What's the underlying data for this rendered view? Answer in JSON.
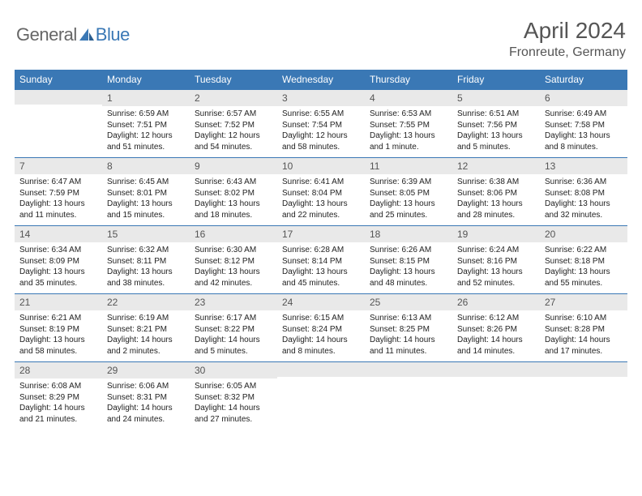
{
  "brand": {
    "part1": "General",
    "part2": "Blue"
  },
  "title": "April 2024",
  "location": "Fronreute, Germany",
  "colors": {
    "header_bg": "#3a78b5",
    "header_text": "#ffffff",
    "daynum_bg": "#e9e9e9",
    "daynum_border": "#3a78b5",
    "text": "#222222",
    "title_text": "#555555",
    "page_bg": "#ffffff"
  },
  "typography": {
    "title_fontsize": 28,
    "location_fontsize": 16,
    "weekday_fontsize": 12,
    "daynum_fontsize": 12,
    "body_fontsize": 10
  },
  "weekdays": [
    "Sunday",
    "Monday",
    "Tuesday",
    "Wednesday",
    "Thursday",
    "Friday",
    "Saturday"
  ],
  "calendar": {
    "start_weekday": 1,
    "num_days": 30
  },
  "days": {
    "1": {
      "sunrise": "Sunrise: 6:59 AM",
      "sunset": "Sunset: 7:51 PM",
      "daylight": "Daylight: 12 hours and 51 minutes."
    },
    "2": {
      "sunrise": "Sunrise: 6:57 AM",
      "sunset": "Sunset: 7:52 PM",
      "daylight": "Daylight: 12 hours and 54 minutes."
    },
    "3": {
      "sunrise": "Sunrise: 6:55 AM",
      "sunset": "Sunset: 7:54 PM",
      "daylight": "Daylight: 12 hours and 58 minutes."
    },
    "4": {
      "sunrise": "Sunrise: 6:53 AM",
      "sunset": "Sunset: 7:55 PM",
      "daylight": "Daylight: 13 hours and 1 minute."
    },
    "5": {
      "sunrise": "Sunrise: 6:51 AM",
      "sunset": "Sunset: 7:56 PM",
      "daylight": "Daylight: 13 hours and 5 minutes."
    },
    "6": {
      "sunrise": "Sunrise: 6:49 AM",
      "sunset": "Sunset: 7:58 PM",
      "daylight": "Daylight: 13 hours and 8 minutes."
    },
    "7": {
      "sunrise": "Sunrise: 6:47 AM",
      "sunset": "Sunset: 7:59 PM",
      "daylight": "Daylight: 13 hours and 11 minutes."
    },
    "8": {
      "sunrise": "Sunrise: 6:45 AM",
      "sunset": "Sunset: 8:01 PM",
      "daylight": "Daylight: 13 hours and 15 minutes."
    },
    "9": {
      "sunrise": "Sunrise: 6:43 AM",
      "sunset": "Sunset: 8:02 PM",
      "daylight": "Daylight: 13 hours and 18 minutes."
    },
    "10": {
      "sunrise": "Sunrise: 6:41 AM",
      "sunset": "Sunset: 8:04 PM",
      "daylight": "Daylight: 13 hours and 22 minutes."
    },
    "11": {
      "sunrise": "Sunrise: 6:39 AM",
      "sunset": "Sunset: 8:05 PM",
      "daylight": "Daylight: 13 hours and 25 minutes."
    },
    "12": {
      "sunrise": "Sunrise: 6:38 AM",
      "sunset": "Sunset: 8:06 PM",
      "daylight": "Daylight: 13 hours and 28 minutes."
    },
    "13": {
      "sunrise": "Sunrise: 6:36 AM",
      "sunset": "Sunset: 8:08 PM",
      "daylight": "Daylight: 13 hours and 32 minutes."
    },
    "14": {
      "sunrise": "Sunrise: 6:34 AM",
      "sunset": "Sunset: 8:09 PM",
      "daylight": "Daylight: 13 hours and 35 minutes."
    },
    "15": {
      "sunrise": "Sunrise: 6:32 AM",
      "sunset": "Sunset: 8:11 PM",
      "daylight": "Daylight: 13 hours and 38 minutes."
    },
    "16": {
      "sunrise": "Sunrise: 6:30 AM",
      "sunset": "Sunset: 8:12 PM",
      "daylight": "Daylight: 13 hours and 42 minutes."
    },
    "17": {
      "sunrise": "Sunrise: 6:28 AM",
      "sunset": "Sunset: 8:14 PM",
      "daylight": "Daylight: 13 hours and 45 minutes."
    },
    "18": {
      "sunrise": "Sunrise: 6:26 AM",
      "sunset": "Sunset: 8:15 PM",
      "daylight": "Daylight: 13 hours and 48 minutes."
    },
    "19": {
      "sunrise": "Sunrise: 6:24 AM",
      "sunset": "Sunset: 8:16 PM",
      "daylight": "Daylight: 13 hours and 52 minutes."
    },
    "20": {
      "sunrise": "Sunrise: 6:22 AM",
      "sunset": "Sunset: 8:18 PM",
      "daylight": "Daylight: 13 hours and 55 minutes."
    },
    "21": {
      "sunrise": "Sunrise: 6:21 AM",
      "sunset": "Sunset: 8:19 PM",
      "daylight": "Daylight: 13 hours and 58 minutes."
    },
    "22": {
      "sunrise": "Sunrise: 6:19 AM",
      "sunset": "Sunset: 8:21 PM",
      "daylight": "Daylight: 14 hours and 2 minutes."
    },
    "23": {
      "sunrise": "Sunrise: 6:17 AM",
      "sunset": "Sunset: 8:22 PM",
      "daylight": "Daylight: 14 hours and 5 minutes."
    },
    "24": {
      "sunrise": "Sunrise: 6:15 AM",
      "sunset": "Sunset: 8:24 PM",
      "daylight": "Daylight: 14 hours and 8 minutes."
    },
    "25": {
      "sunrise": "Sunrise: 6:13 AM",
      "sunset": "Sunset: 8:25 PM",
      "daylight": "Daylight: 14 hours and 11 minutes."
    },
    "26": {
      "sunrise": "Sunrise: 6:12 AM",
      "sunset": "Sunset: 8:26 PM",
      "daylight": "Daylight: 14 hours and 14 minutes."
    },
    "27": {
      "sunrise": "Sunrise: 6:10 AM",
      "sunset": "Sunset: 8:28 PM",
      "daylight": "Daylight: 14 hours and 17 minutes."
    },
    "28": {
      "sunrise": "Sunrise: 6:08 AM",
      "sunset": "Sunset: 8:29 PM",
      "daylight": "Daylight: 14 hours and 21 minutes."
    },
    "29": {
      "sunrise": "Sunrise: 6:06 AM",
      "sunset": "Sunset: 8:31 PM",
      "daylight": "Daylight: 14 hours and 24 minutes."
    },
    "30": {
      "sunrise": "Sunrise: 6:05 AM",
      "sunset": "Sunset: 8:32 PM",
      "daylight": "Daylight: 14 hours and 27 minutes."
    }
  }
}
